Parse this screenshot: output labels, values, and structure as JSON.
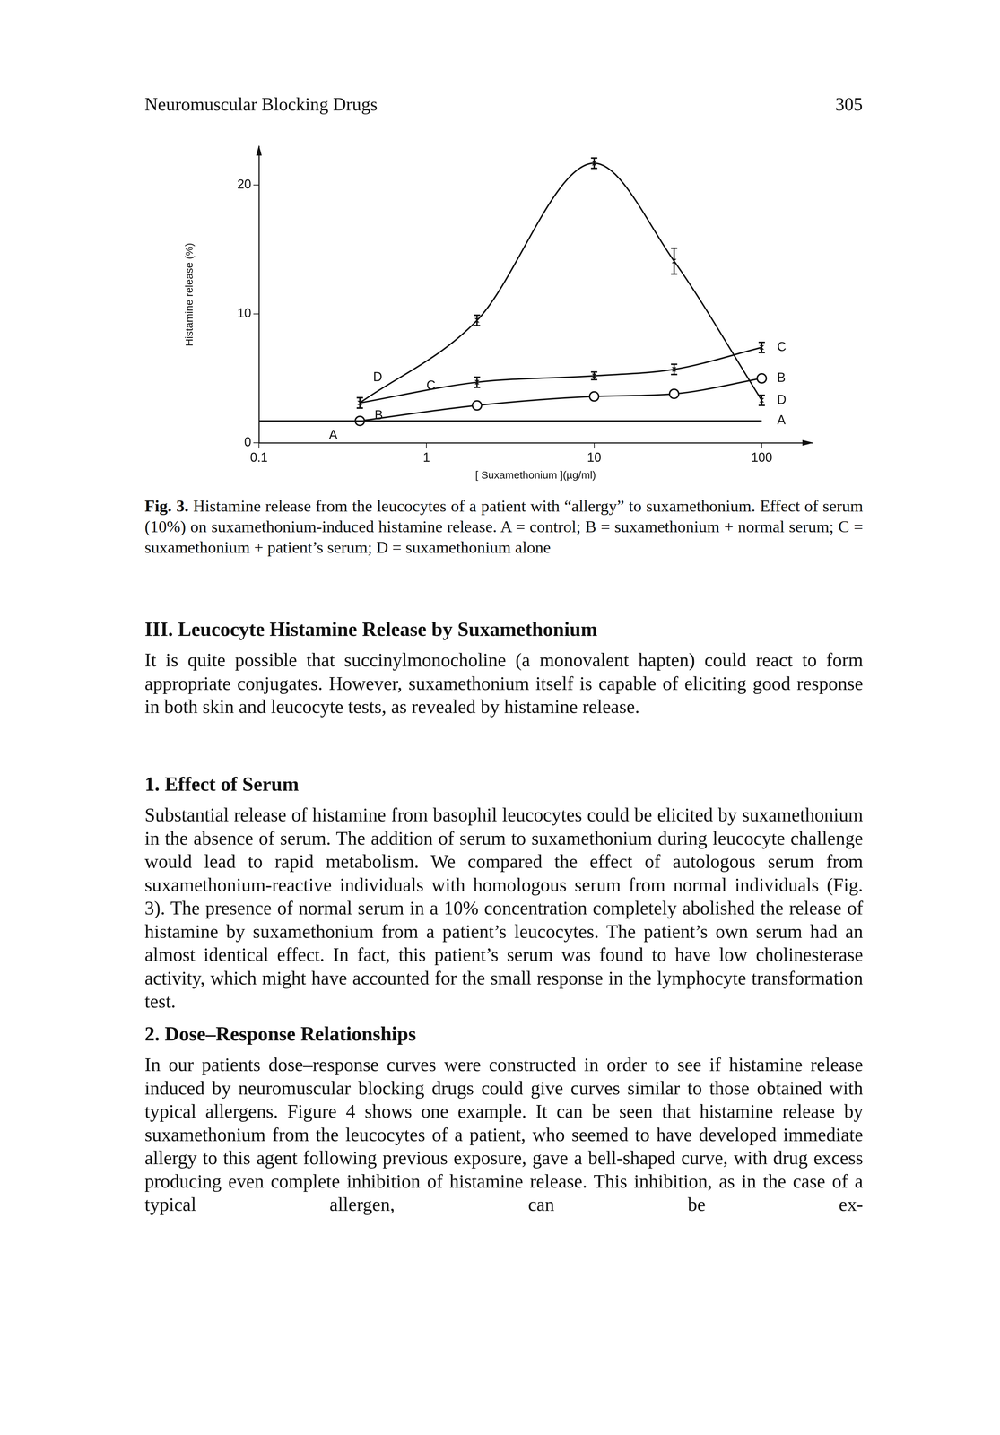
{
  "header": {
    "running_title": "Neuromuscular Blocking Drugs",
    "page_number": "305"
  },
  "chart_data": {
    "type": "line",
    "x_label": "[ Suxamethonium ](µg/ml)",
    "y_label": "Histamine release (%)",
    "log": "x",
    "grid": false,
    "xlim": [
      0.1,
      200
    ],
    "xticks": [
      0.1,
      1,
      10,
      100
    ],
    "ylim": [
      0,
      23
    ],
    "yticks": [
      0,
      10,
      20
    ],
    "series": [
      {
        "name": "A",
        "color": "#111111",
        "marker": "none",
        "line_style": "solid",
        "x": [
          0.1,
          100
        ],
        "values": [
          1.7,
          1.7
        ]
      },
      {
        "name": "B",
        "color": "#111111",
        "marker": "circle",
        "line_style": "solid",
        "x": [
          0.4,
          2,
          10,
          30,
          100
        ],
        "values": [
          1.7,
          2.9,
          3.6,
          3.8,
          5.0
        ]
      },
      {
        "name": "C",
        "color": "#111111",
        "marker": "none",
        "line_style": "solid",
        "x": [
          0.4,
          2,
          10,
          30,
          100
        ],
        "values": [
          3.1,
          4.7,
          5.2,
          5.7,
          7.4
        ],
        "errors": [
          0.4,
          0.4,
          0.3,
          0.4,
          0.4
        ]
      },
      {
        "name": "D",
        "color": "#111111",
        "marker": "none",
        "line_style": "solid",
        "x": [
          0.4,
          2,
          10,
          30,
          100
        ],
        "values": [
          3.1,
          9.5,
          21.7,
          14.1,
          3.3
        ],
        "errors": [
          0.4,
          0.4,
          0.4,
          1.0,
          0.4
        ]
      }
    ]
  },
  "caption": {
    "label": "Fig. 3.",
    "text": "Histamine release from the leucocytes of a patient with “allergy” to suxamethonium. Effect of serum (10%) on suxamethonium-induced histamine release. A = control; B = suxamethonium + normal serum; C = suxamethonium + patient’s serum; D = suxamethonium alone"
  },
  "sections": [
    {
      "heading": "III. Leucocyte Histamine Release by Suxamethonium",
      "paragraphs": [
        "It is quite possible that succinylmonocholine (a monovalent hapten) could react to form appropriate conjugates. However, suxamethonium itself is capable of eliciting good response in both skin and leucocyte tests, as revealed by histamine release."
      ]
    },
    {
      "heading": "1. Effect of Serum",
      "paragraphs": [
        "Substantial release of histamine from basophil leucocytes could be elicited by suxamethonium in the absence of serum. The addition of serum to suxamethonium during leucocyte challenge would lead to rapid metabolism. We compared the effect of autologous serum from suxamethonium-reactive individuals with homologous serum from normal individuals (Fig. 3). The presence of normal serum in a 10% concentration completely abolished the release of histamine by suxamethonium from a patient’s leucocytes. The patient’s own serum had an almost identical effect. In fact, this patient’s serum was found to have low cholinesterase activity, which might have accounted for the small response in the lymphocyte transformation test."
      ]
    },
    {
      "heading": "2. Dose–Response Relationships",
      "paragraphs": [
        "In our patients dose–response curves were constructed in order to see if histamine release induced by neuromuscular blocking drugs could give curves similar to those obtained with typical allergens. Figure 4 shows one example. It can be seen that histamine release by suxamethonium from the leucocytes of a patient, who seemed to have developed immediate allergy to this agent following previous exposure, gave a bell-shaped curve, with drug excess producing even complete inhibition of histamine release. This inhibition, as in the case of a typical allergen, can be ex-"
      ]
    }
  ]
}
